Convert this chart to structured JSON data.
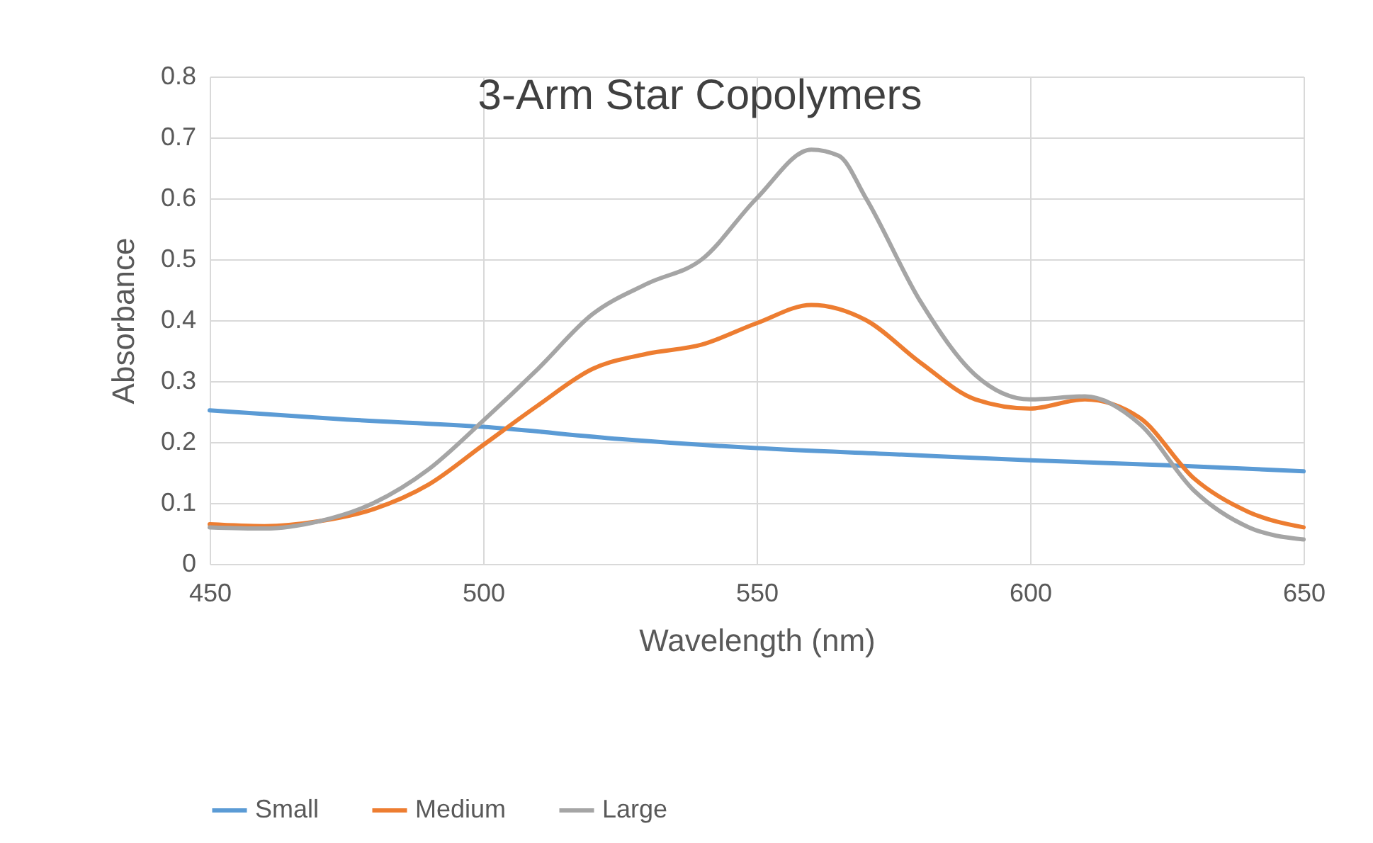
{
  "chart_data": {
    "type": "line",
    "title": "3-Arm Star Copolymers",
    "xlabel": "Wavelength (nm)",
    "ylabel": "Absorbance",
    "xlim": [
      450,
      650
    ],
    "xticks": [
      450,
      500,
      550,
      600,
      650
    ],
    "ylim": [
      0,
      0.8
    ],
    "yticks": [
      0,
      0.1,
      0.2,
      0.3,
      0.4,
      0.5,
      0.6,
      0.7,
      0.8
    ],
    "grid": true,
    "legend": "bottom",
    "marker": "none",
    "line_style": "solid",
    "series": [
      {
        "name": "Small",
        "color": "#5b9bd5",
        "x": [
          450,
          475,
          500,
          525,
          550,
          575,
          600,
          625,
          650
        ],
        "values": [
          0.252,
          0.237,
          0.225,
          0.205,
          0.19,
          0.18,
          0.17,
          0.162,
          0.152
        ]
      },
      {
        "name": "Medium",
        "color": "#ed7d31",
        "x": [
          450,
          460,
          470,
          480,
          490,
          500,
          510,
          520,
          530,
          540,
          550,
          560,
          570,
          580,
          590,
          600,
          610,
          620,
          630,
          640,
          650
        ],
        "values": [
          0.065,
          0.062,
          0.07,
          0.09,
          0.13,
          0.195,
          0.26,
          0.32,
          0.345,
          0.36,
          0.395,
          0.425,
          0.4,
          0.33,
          0.27,
          0.255,
          0.27,
          0.24,
          0.14,
          0.085,
          0.06
        ]
      },
      {
        "name": "Large",
        "color": "#a5a5a5",
        "x": [
          450,
          460,
          470,
          480,
          490,
          500,
          510,
          520,
          530,
          540,
          550,
          560,
          565,
          570,
          580,
          590,
          600,
          610,
          620,
          630,
          640,
          650
        ],
        "values": [
          0.06,
          0.058,
          0.07,
          0.1,
          0.155,
          0.235,
          0.32,
          0.41,
          0.46,
          0.5,
          0.6,
          0.68,
          0.67,
          0.6,
          0.43,
          0.31,
          0.27,
          0.275,
          0.23,
          0.12,
          0.06,
          0.04
        ]
      }
    ]
  }
}
